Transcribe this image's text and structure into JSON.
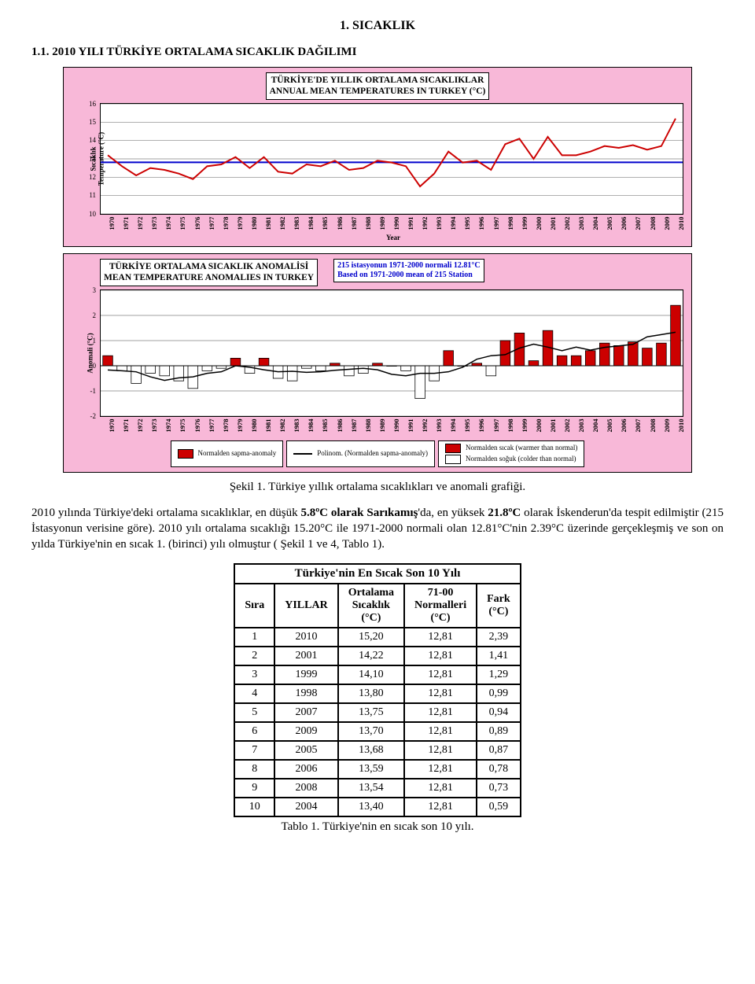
{
  "section": {
    "number": "1. SICAKLIK",
    "sub": "1.1.  2010 YILI TÜRKİYE ORTALAMA SICAKLIK DAĞILIMI"
  },
  "chart1": {
    "type": "line",
    "title_line1": "TÜRKİYE'DE YILLIK ORTALAMA SICAKLIKLAR",
    "title_line2": "ANNUAL MEAN TEMPERATURES IN TURKEY (°C)",
    "ylabel": "Sıcaklık\nTemperature (°C)",
    "xlabel": "Year",
    "ylim": [
      10,
      16
    ],
    "ytick_step": 1,
    "years": [
      1970,
      1971,
      1972,
      1973,
      1974,
      1975,
      1976,
      1977,
      1978,
      1979,
      1980,
      1981,
      1982,
      1983,
      1984,
      1985,
      1986,
      1987,
      1988,
      1989,
      1990,
      1991,
      1992,
      1993,
      1994,
      1995,
      1996,
      1997,
      1998,
      1999,
      2000,
      2001,
      2002,
      2003,
      2004,
      2005,
      2006,
      2007,
      2008,
      2009,
      2010
    ],
    "values": [
      13.2,
      12.6,
      12.1,
      12.5,
      12.4,
      12.2,
      11.9,
      12.6,
      12.7,
      13.1,
      12.5,
      13.1,
      12.3,
      12.2,
      12.7,
      12.6,
      12.9,
      12.4,
      12.5,
      12.9,
      12.8,
      12.6,
      11.5,
      12.2,
      13.4,
      12.8,
      12.9,
      12.4,
      13.8,
      14.1,
      13.0,
      14.2,
      13.2,
      13.2,
      13.4,
      13.7,
      13.6,
      13.75,
      13.5,
      13.7,
      15.2
    ],
    "line_color": "#cc0000",
    "line_width": 2,
    "reference_value": 12.81,
    "reference_color": "#0000cc",
    "background_color": "#ffffff",
    "frame_color": "#f8b8d8",
    "grid_color": "#808080"
  },
  "chart2": {
    "type": "bar",
    "title_line1": "TÜRKİYE ORTALAMA SICAKLIK ANOMALİSİ",
    "title_line2": "MEAN TEMPERATURE ANOMALIES IN TURKEY",
    "note_line1": "215 istasyonun 1971-2000 normali 12.81°C",
    "note_line2": "Based on 1971-2000 mean of 215 Station",
    "ylabel": "Anomali (°C)",
    "ylim": [
      -2,
      3
    ],
    "ytick_step": 1,
    "years": [
      1970,
      1971,
      1972,
      1973,
      1974,
      1975,
      1976,
      1977,
      1978,
      1979,
      1980,
      1981,
      1982,
      1983,
      1984,
      1985,
      1986,
      1987,
      1988,
      1989,
      1990,
      1991,
      1992,
      1993,
      1994,
      1995,
      1996,
      1997,
      1998,
      1999,
      2000,
      2001,
      2002,
      2003,
      2004,
      2005,
      2006,
      2007,
      2008,
      2009,
      2010
    ],
    "values": [
      0.4,
      -0.2,
      -0.7,
      -0.3,
      -0.4,
      -0.6,
      -0.9,
      -0.2,
      -0.1,
      0.3,
      -0.3,
      0.3,
      -0.5,
      -0.6,
      -0.1,
      -0.2,
      0.1,
      -0.4,
      -0.3,
      0.1,
      0.0,
      -0.2,
      -1.3,
      -0.6,
      0.6,
      0.0,
      0.1,
      -0.4,
      1.0,
      1.3,
      0.2,
      1.4,
      0.4,
      0.4,
      0.6,
      0.9,
      0.8,
      0.95,
      0.7,
      0.9,
      2.4
    ],
    "positive_color": "#cc0000",
    "negative_color": "#ffffff",
    "bar_border": "#000000",
    "trend_color": "#000000",
    "legend": {
      "anomaly": "Normalden sapma-anomaly",
      "trend": "Polinom. (Normalden sapma-anomaly)",
      "warm": "Normalden sıcak (warmer than normal)",
      "cold": "Normalden soğuk (colder than normal)"
    }
  },
  "fig_caption": "Şekil 1. Türkiye yıllık ortalama sıcaklıkları ve anomali grafiği.",
  "paragraph": {
    "p1a": "2010 yılında Türkiye'deki ortalama sıcaklıklar, en düşük ",
    "p1b": "5.8ºC olarak Sarıkamış",
    "p1c": "'da, en yüksek ",
    "p1d": "21.8ºC",
    "p1e": " olarak İskenderun'da tespit edilmiştir (215 İstasyonun verisine göre). 2010 yılı ortalama sıcaklığı 15.20°C ile 1971-2000 normali olan 12.81°C'nin 2.39°C üzerinde gerçekleşmiş ve son on yılda Türkiye'nin en sıcak 1. (birinci) yılı olmuştur    ( Şekil 1 ve 4, Tablo 1)."
  },
  "table": {
    "title": "Türkiye'nin En Sıcak Son 10 Yılı",
    "columns": [
      "Sıra",
      "YILLAR",
      "Ortalama Sıcaklık (°C)",
      "71-00 Normalleri (°C)",
      "Fark (°C)"
    ],
    "col_headers_multiline": {
      "c0": "Sıra",
      "c1": "YILLAR",
      "c2a": "Ortalama",
      "c2b": "Sıcaklık",
      "c2c": "(°C)",
      "c3a": "71-00",
      "c3b": "Normalleri",
      "c3c": "(°C)",
      "c4a": "Fark",
      "c4b": "(°C)"
    },
    "rows": [
      [
        1,
        2010,
        "15,20",
        "12,81",
        "2,39"
      ],
      [
        2,
        2001,
        "14,22",
        "12,81",
        "1,41"
      ],
      [
        3,
        1999,
        "14,10",
        "12,81",
        "1,29"
      ],
      [
        4,
        1998,
        "13,80",
        "12,81",
        "0,99"
      ],
      [
        5,
        2007,
        "13,75",
        "12,81",
        "0,94"
      ],
      [
        6,
        2009,
        "13,70",
        "12,81",
        "0,89"
      ],
      [
        7,
        2005,
        "13,68",
        "12,81",
        "0,87"
      ],
      [
        8,
        2006,
        "13,59",
        "12,81",
        "0,78"
      ],
      [
        9,
        2008,
        "13,54",
        "12,81",
        "0,73"
      ],
      [
        10,
        2004,
        "13,40",
        "12,81",
        "0,59"
      ]
    ],
    "caption": "Tablo 1. Türkiye'nin en sıcak son 10 yılı."
  }
}
